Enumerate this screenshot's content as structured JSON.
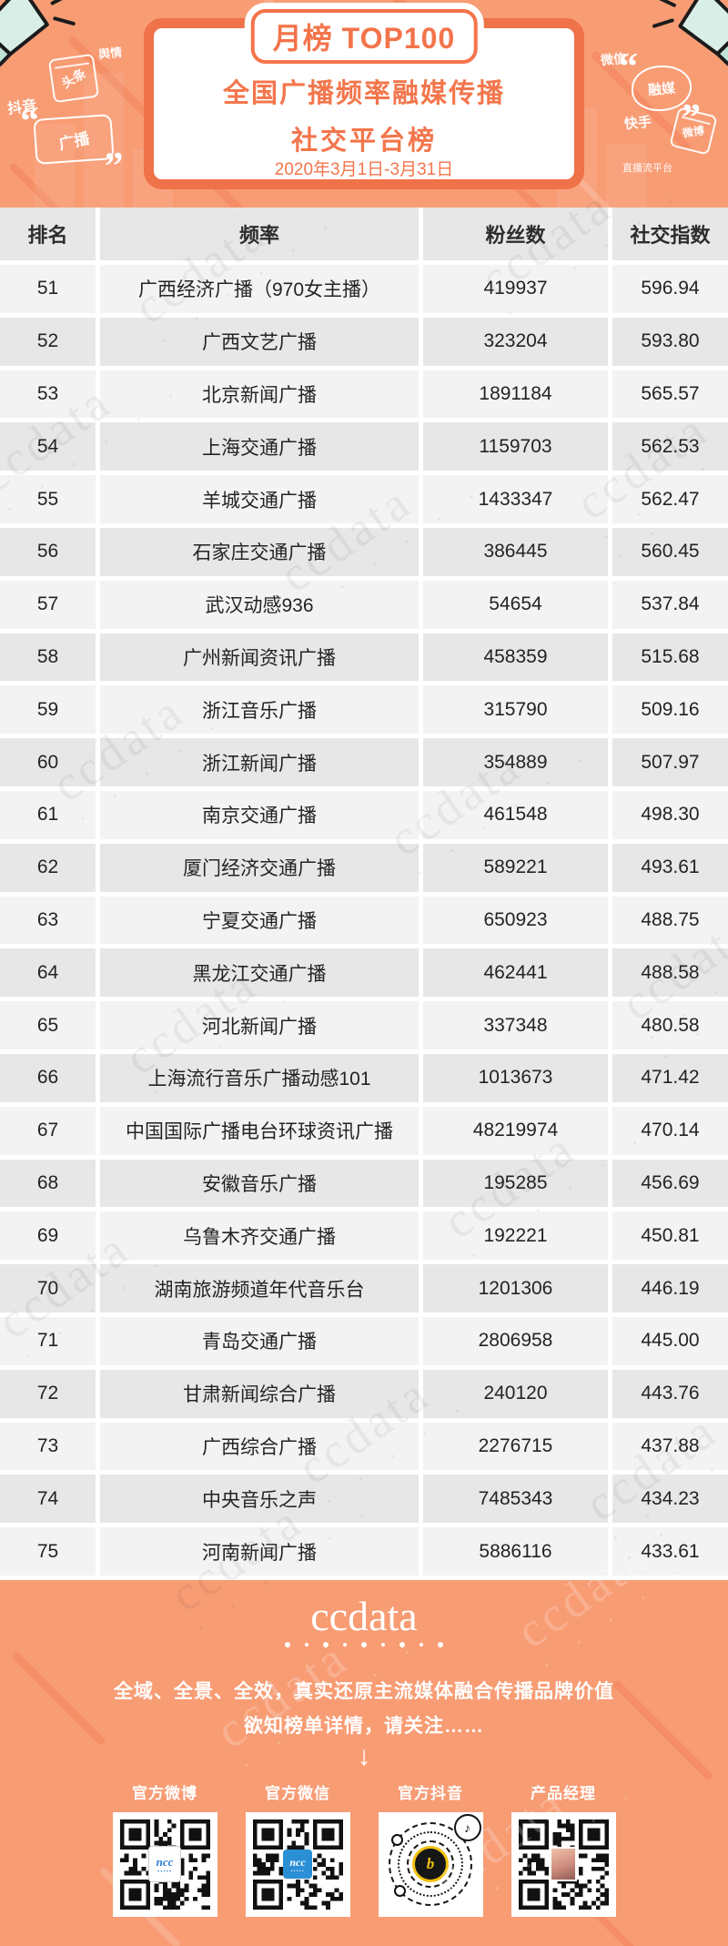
{
  "header": {
    "badge": "月榜 TOP100",
    "title_line1": "全国广播频率融媒传播",
    "title_line2": "社交平台榜",
    "date_range": "2020年3月1日-3月31日",
    "doodles": {
      "yuqing": "舆情",
      "toutiao": "头条",
      "douyin": "抖音",
      "guangbo": "广播",
      "weixin": "微信",
      "rongmei": "融媒",
      "kuaishou": "快手",
      "weibo": "微博",
      "zhibo": "直播流平台"
    }
  },
  "chart_data": {
    "type": "table",
    "title": "全国广播频率融媒传播社交平台榜 月榜 TOP100",
    "period": "2020年3月1日-3月31日",
    "columns": [
      "排名",
      "频率",
      "粉丝数",
      "社交指数"
    ],
    "rows": [
      {
        "rank": "51",
        "station": "广西经济广播（970女主播）",
        "fans": "419937",
        "index": "596.94"
      },
      {
        "rank": "52",
        "station": "广西文艺广播",
        "fans": "323204",
        "index": "593.80"
      },
      {
        "rank": "53",
        "station": "北京新闻广播",
        "fans": "1891184",
        "index": "565.57"
      },
      {
        "rank": "54",
        "station": "上海交通广播",
        "fans": "1159703",
        "index": "562.53"
      },
      {
        "rank": "55",
        "station": "羊城交通广播",
        "fans": "1433347",
        "index": "562.47"
      },
      {
        "rank": "56",
        "station": "石家庄交通广播",
        "fans": "386445",
        "index": "560.45"
      },
      {
        "rank": "57",
        "station": "武汉动感936",
        "fans": "54654",
        "index": "537.84"
      },
      {
        "rank": "58",
        "station": "广州新闻资讯广播",
        "fans": "458359",
        "index": "515.68"
      },
      {
        "rank": "59",
        "station": "浙江音乐广播",
        "fans": "315790",
        "index": "509.16"
      },
      {
        "rank": "60",
        "station": "浙江新闻广播",
        "fans": "354889",
        "index": "507.97"
      },
      {
        "rank": "61",
        "station": "南京交通广播",
        "fans": "461548",
        "index": "498.30"
      },
      {
        "rank": "62",
        "station": "厦门经济交通广播",
        "fans": "589221",
        "index": "493.61"
      },
      {
        "rank": "63",
        "station": "宁夏交通广播",
        "fans": "650923",
        "index": "488.75"
      },
      {
        "rank": "64",
        "station": "黑龙江交通广播",
        "fans": "462441",
        "index": "488.58"
      },
      {
        "rank": "65",
        "station": "河北新闻广播",
        "fans": "337348",
        "index": "480.58"
      },
      {
        "rank": "66",
        "station": "上海流行音乐广播动感101",
        "fans": "1013673",
        "index": "471.42"
      },
      {
        "rank": "67",
        "station": "中国国际广播电台环球资讯广播",
        "fans": "48219974",
        "index": "470.14"
      },
      {
        "rank": "68",
        "station": "安徽音乐广播",
        "fans": "195285",
        "index": "456.69"
      },
      {
        "rank": "69",
        "station": "乌鲁木齐交通广播",
        "fans": "192221",
        "index": "450.81"
      },
      {
        "rank": "70",
        "station": "湖南旅游频道年代音乐台",
        "fans": "1201306",
        "index": "446.19"
      },
      {
        "rank": "71",
        "station": "青岛交通广播",
        "fans": "2806958",
        "index": "445.00"
      },
      {
        "rank": "72",
        "station": "甘肃新闻综合广播",
        "fans": "240120",
        "index": "443.76"
      },
      {
        "rank": "73",
        "station": "广西综合广播",
        "fans": "2276715",
        "index": "437.88"
      },
      {
        "rank": "74",
        "station": "中央音乐之声",
        "fans": "7485343",
        "index": "434.23"
      },
      {
        "rank": "75",
        "station": "河南新闻广播",
        "fans": "5886116",
        "index": "433.61"
      }
    ]
  },
  "watermark": {
    "text": "ccdata"
  },
  "footer": {
    "logo": "ccdata",
    "tagline1": "全域、全景、全效，真实还原主流媒体融合传播品牌价值",
    "tagline2": "欲知榜单详情，请关注……",
    "arrow": "↓",
    "qr_items": [
      {
        "label": "官方微博",
        "style": "ncc-light",
        "center_text": "ncc"
      },
      {
        "label": "官方微信",
        "style": "ncc-solid",
        "center_text": "ncc"
      },
      {
        "label": "官方抖音",
        "style": "douyin",
        "center_text": "b",
        "badge_icon": "♪"
      },
      {
        "label": "产品经理",
        "style": "photo",
        "center_text": ""
      }
    ]
  },
  "colors": {
    "background_orange": "#f89c74",
    "accent_orange": "#f3744b",
    "card_border": "#ef7249",
    "table_stripe_dark": "#e7e7e7",
    "table_stripe_light": "#f3f3f3",
    "text_dark": "#232323",
    "white": "#ffffff"
  }
}
